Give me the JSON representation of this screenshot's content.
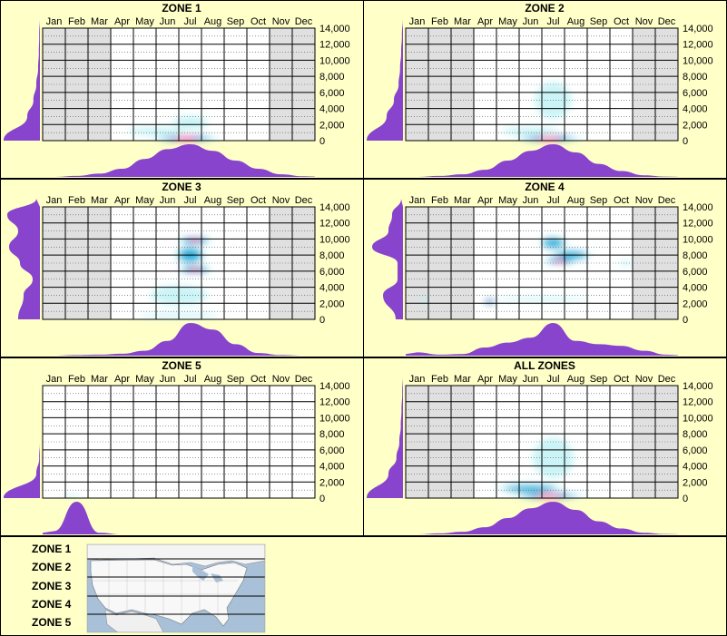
{
  "chart_data": {
    "type": "heatmap",
    "months": [
      "Jan",
      "Feb",
      "Mar",
      "Apr",
      "May",
      "Jun",
      "Jul",
      "Aug",
      "Sep",
      "Oct",
      "Nov",
      "Dec"
    ],
    "ylim": [
      0,
      14000
    ],
    "yticks": [
      "14,000",
      "12,000",
      "10,000",
      "8,000",
      "6,000",
      "4,000",
      "2,000",
      "0"
    ],
    "grid": true,
    "colors": {
      "background": "#ffffc8",
      "no_data_month": "#e0e0e0",
      "density_low": "#b8f0f4",
      "density_mid": "#00a8d8",
      "density_high": "#0000b0",
      "density_peak": "#ff2090",
      "marginal_fill": "#8844cc"
    },
    "panels": [
      {
        "title": "ZONE 1",
        "no_data_months": [
          "Jan",
          "Feb",
          "Mar",
          "Nov",
          "Dec"
        ],
        "blobs": [
          {
            "month": 6.8,
            "elev": 300,
            "w": 3.2,
            "h": 500,
            "level": 4
          },
          {
            "month": 7.0,
            "elev": 2200,
            "w": 1.5,
            "h": 1800,
            "level": 1
          },
          {
            "month": 5.5,
            "elev": 1200,
            "w": 2.5,
            "h": 1000,
            "level": 1
          }
        ],
        "month_marginal": [
          0.0,
          0.03,
          0.1,
          0.25,
          0.55,
          0.85,
          1.0,
          0.8,
          0.5,
          0.25,
          0.08,
          0.02
        ],
        "elev_marginal": [
          1.0,
          0.35,
          0.18,
          0.1,
          0.05,
          0.03,
          0.02,
          0.01
        ]
      },
      {
        "title": "ZONE 2",
        "no_data_months": [
          "Jan",
          "Feb",
          "Mar",
          "Nov",
          "Dec"
        ],
        "blobs": [
          {
            "month": 6.8,
            "elev": 300,
            "w": 3.2,
            "h": 500,
            "level": 4
          },
          {
            "month": 7.0,
            "elev": 5000,
            "w": 1.6,
            "h": 4500,
            "level": 1
          },
          {
            "month": 6.0,
            "elev": 1200,
            "w": 2.5,
            "h": 1000,
            "level": 1
          }
        ],
        "month_marginal": [
          0.0,
          0.03,
          0.08,
          0.22,
          0.5,
          0.8,
          1.0,
          0.75,
          0.4,
          0.18,
          0.05,
          0.01
        ],
        "elev_marginal": [
          1.0,
          0.45,
          0.25,
          0.12,
          0.08,
          0.05,
          0.03,
          0.01
        ]
      },
      {
        "title": "ZONE 3",
        "no_data_months": [
          "Jan",
          "Feb",
          "Mar",
          "Nov",
          "Dec"
        ],
        "blobs": [
          {
            "month": 7.2,
            "elev": 9800,
            "w": 1.5,
            "h": 900,
            "level": 4
          },
          {
            "month": 7.2,
            "elev": 6200,
            "w": 1.5,
            "h": 900,
            "level": 4
          },
          {
            "month": 7.0,
            "elev": 8000,
            "w": 1.3,
            "h": 2200,
            "level": 2
          },
          {
            "month": 6.5,
            "elev": 500,
            "w": 3.5,
            "h": 600,
            "level": 1
          },
          {
            "month": 6.5,
            "elev": 3000,
            "w": 2.5,
            "h": 2500,
            "level": 1
          }
        ],
        "month_marginal": [
          0.0,
          0.02,
          0.03,
          0.06,
          0.15,
          0.45,
          1.0,
          0.8,
          0.35,
          0.08,
          0.02,
          0.0
        ],
        "elev_marginal": [
          0.6,
          0.45,
          0.2,
          0.55,
          0.85,
          0.6,
          0.9,
          0.1
        ]
      },
      {
        "title": "ZONE 4",
        "no_data_months": [
          "Jan",
          "Feb",
          "Mar",
          "Nov",
          "Dec"
        ],
        "blobs": [
          {
            "month": 7.3,
            "elev": 7300,
            "w": 1.5,
            "h": 700,
            "level": 4
          },
          {
            "month": 7.0,
            "elev": 9500,
            "w": 1.2,
            "h": 1500,
            "level": 2
          },
          {
            "month": 7.8,
            "elev": 8000,
            "w": 1.8,
            "h": 1200,
            "level": 2
          },
          {
            "month": 4.2,
            "elev": 2200,
            "w": 0.6,
            "h": 600,
            "level": 3
          },
          {
            "month": 6.5,
            "elev": 2500,
            "w": 4.0,
            "h": 500,
            "level": 1
          },
          {
            "month": 1.3,
            "elev": 2400,
            "w": 0.5,
            "h": 600,
            "level": 1
          },
          {
            "month": 10.2,
            "elev": 7000,
            "w": 0.5,
            "h": 700,
            "level": 1
          }
        ],
        "month_marginal": [
          0.1,
          0.03,
          0.05,
          0.25,
          0.4,
          0.55,
          1.0,
          0.45,
          0.35,
          0.3,
          0.15,
          0.03
        ],
        "elev_marginal": [
          0.2,
          0.55,
          0.15,
          0.15,
          0.85,
          0.4,
          0.3,
          0.05
        ]
      },
      {
        "title": "ZONE 5",
        "no_data_months": [],
        "blobs": [
          {
            "month": 1.7,
            "elev": 200,
            "w": 0.8,
            "h": 300,
            "level": 1
          }
        ],
        "month_marginal": [
          0.1,
          1.0,
          0.05,
          0.0,
          0.0,
          0.0,
          0.0,
          0.0,
          0.0,
          0.0,
          0.0,
          0.0
        ],
        "elev_marginal": [
          1.0,
          0.1,
          0.02,
          0.0,
          0.0,
          0.0,
          0.0,
          0.0
        ]
      },
      {
        "title": "ALL ZONES",
        "no_data_months": [
          "Jan",
          "Feb",
          "Mar",
          "Nov",
          "Dec"
        ],
        "blobs": [
          {
            "month": 6.8,
            "elev": 300,
            "w": 3.4,
            "h": 500,
            "level": 4
          },
          {
            "month": 7.0,
            "elev": 5000,
            "w": 1.8,
            "h": 5000,
            "level": 1
          },
          {
            "month": 6.0,
            "elev": 1200,
            "w": 3.0,
            "h": 1000,
            "level": 2
          }
        ],
        "month_marginal": [
          0.0,
          0.03,
          0.08,
          0.22,
          0.5,
          0.8,
          1.0,
          0.75,
          0.4,
          0.18,
          0.05,
          0.01
        ],
        "elev_marginal": [
          1.0,
          0.4,
          0.18,
          0.1,
          0.06,
          0.04,
          0.02,
          0.01
        ]
      }
    ]
  },
  "legend": {
    "zones": [
      "ZONE 1",
      "ZONE 2",
      "ZONE 3",
      "ZONE 4",
      "ZONE 5"
    ]
  }
}
